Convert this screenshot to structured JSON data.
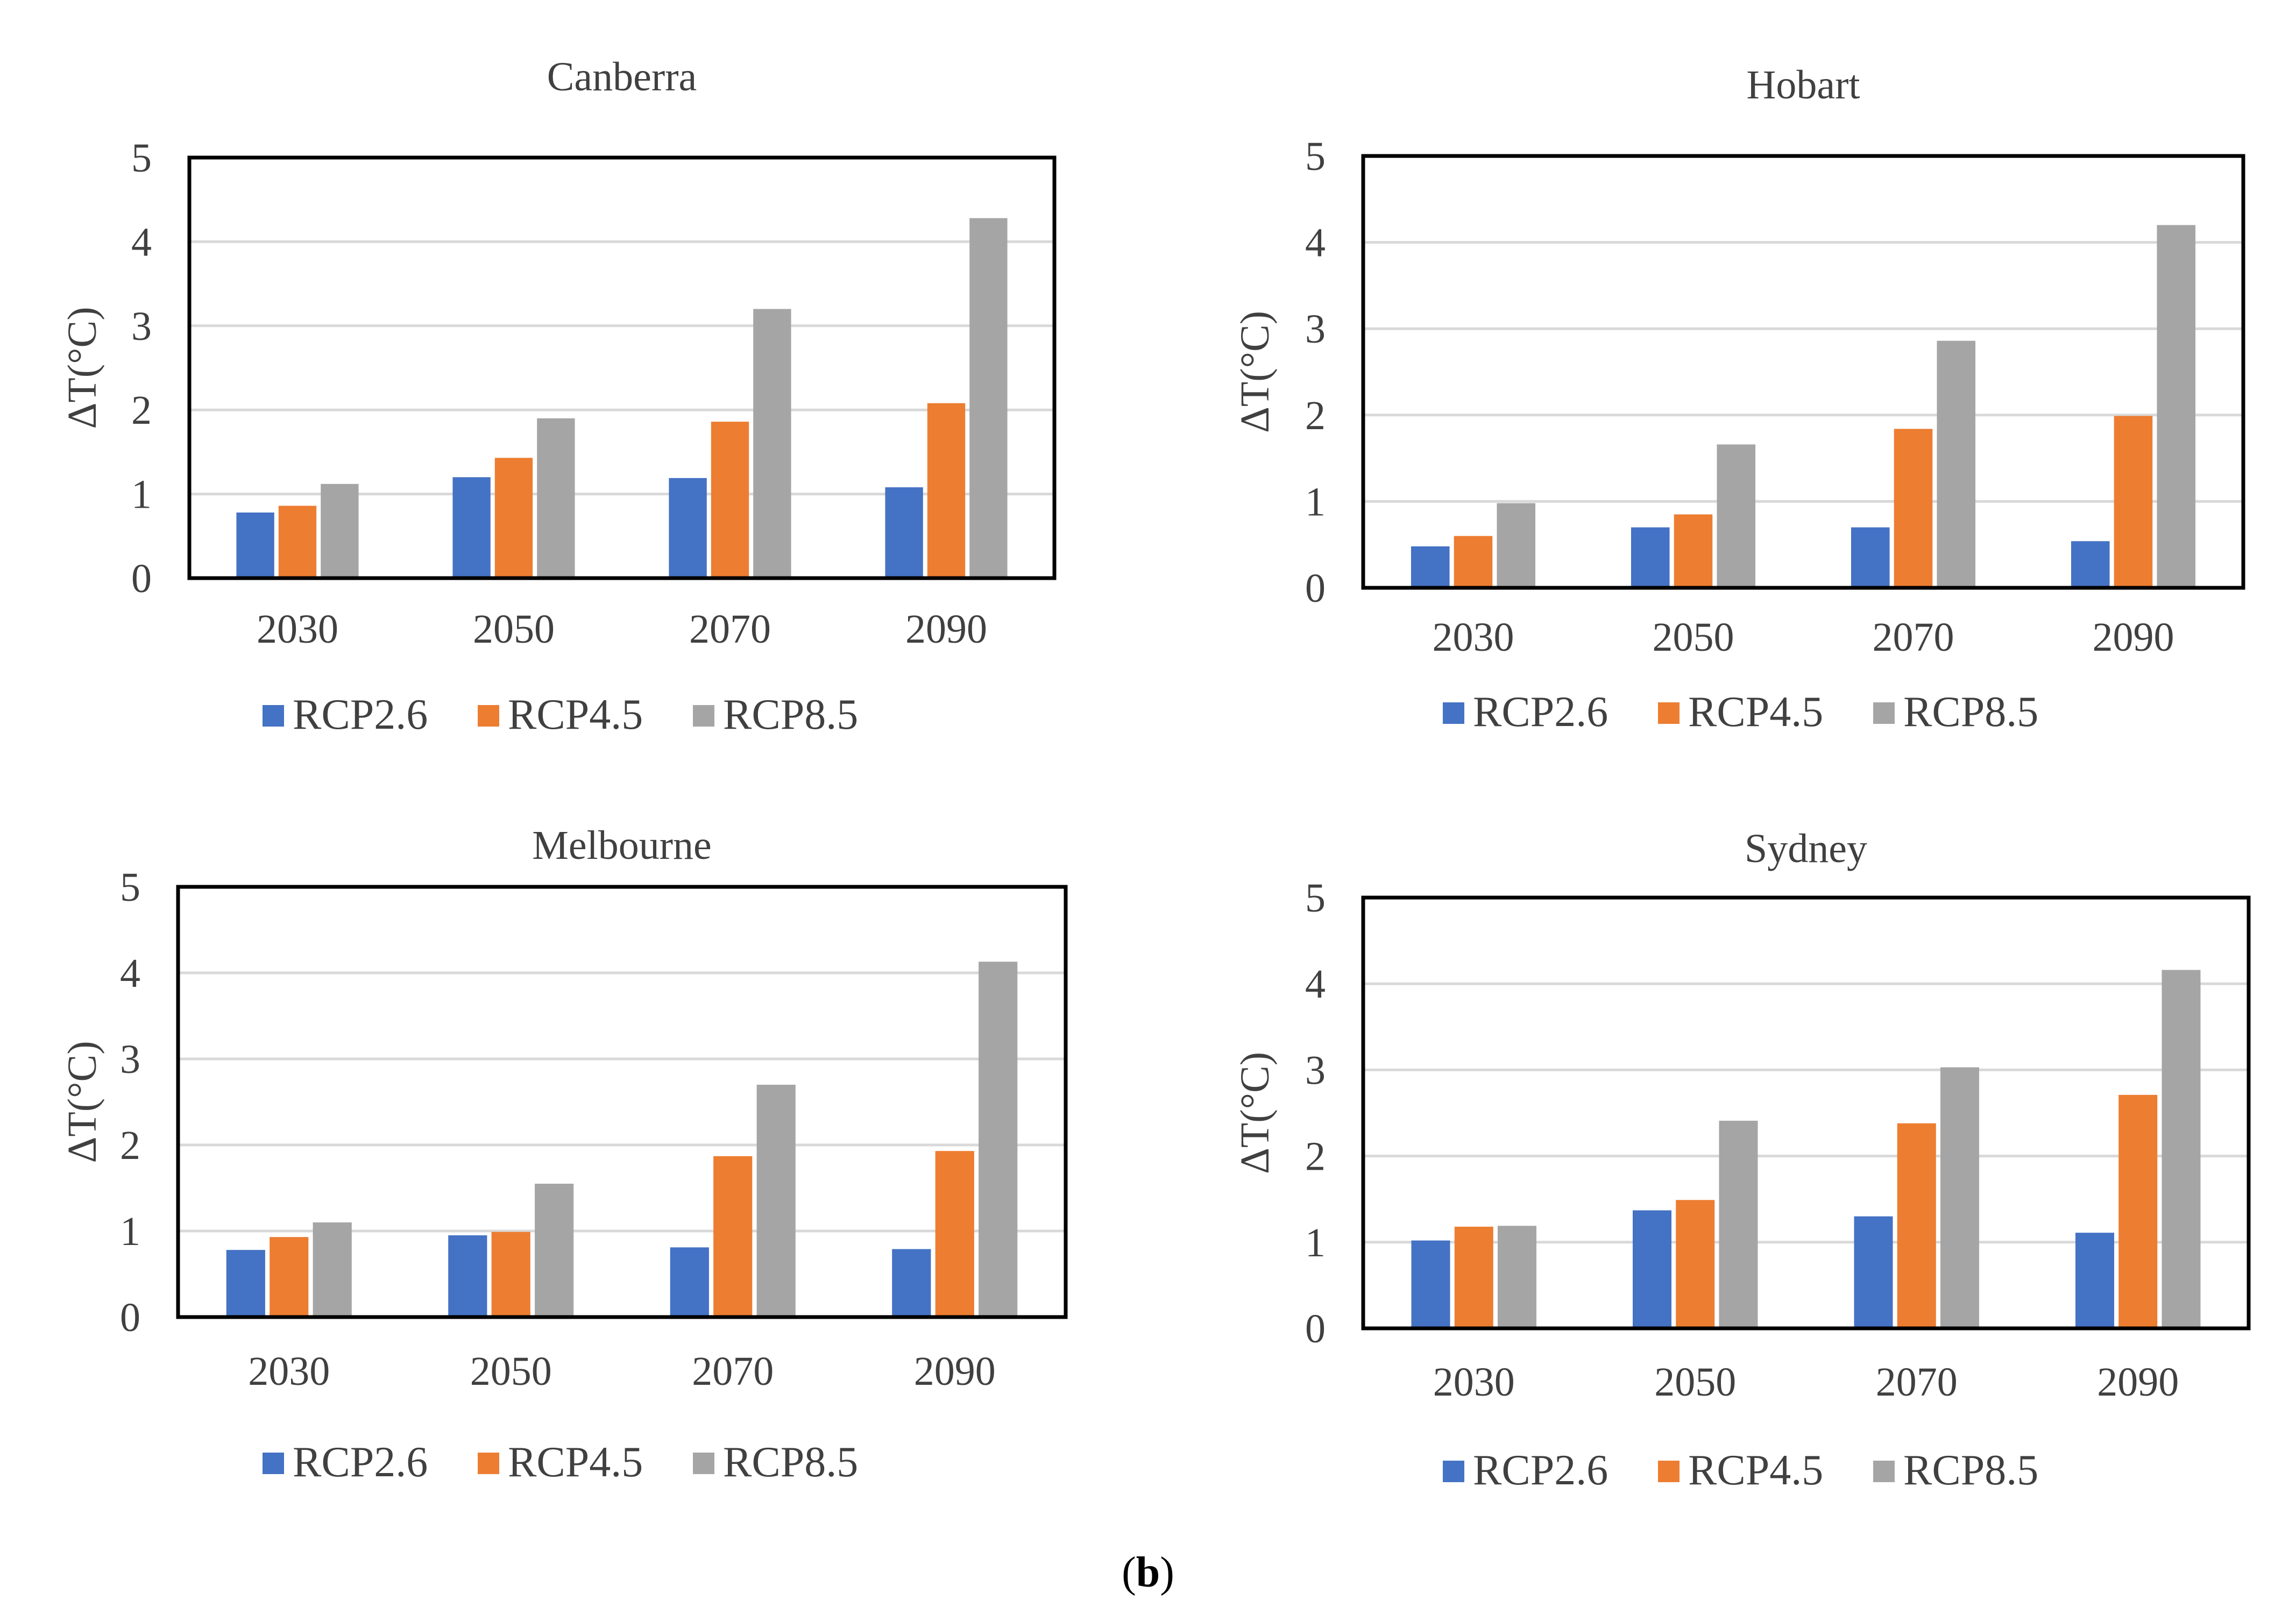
{
  "colors": {
    "RCP2.6": "#4472c4",
    "RCP4.5": "#ed7d31",
    "RCP8.5": "#a5a5a5",
    "grid": "#d9d9d9",
    "frame": "#000000",
    "text": "#404040"
  },
  "caption": {
    "open": "(",
    "bold": "b",
    "close": ")"
  },
  "chart_data": [
    {
      "type": "bar",
      "title": "Canberra",
      "ylabel": "ΔT(°C)",
      "xlabel": "",
      "ylim": [
        0,
        5
      ],
      "yticks": [
        "0",
        "1",
        "2",
        "3",
        "4",
        "5"
      ],
      "categories": [
        "2030",
        "2050",
        "2070",
        "2090"
      ],
      "series": [
        {
          "name": "RCP2.6",
          "values": [
            0.78,
            1.2,
            1.19,
            1.08
          ]
        },
        {
          "name": "RCP4.5",
          "values": [
            0.86,
            1.43,
            1.86,
            2.08
          ]
        },
        {
          "name": "RCP8.5",
          "values": [
            1.12,
            1.9,
            3.2,
            4.28
          ]
        }
      ],
      "legend": "bottom"
    },
    {
      "type": "bar",
      "title": "Hobart",
      "ylabel": "ΔT(°C)",
      "xlabel": "",
      "ylim": [
        0,
        5
      ],
      "yticks": [
        "0",
        "1",
        "2",
        "3",
        "4",
        "5"
      ],
      "categories": [
        "2030",
        "2050",
        "2070",
        "2090"
      ],
      "series": [
        {
          "name": "RCP2.6",
          "values": [
            0.48,
            0.7,
            0.7,
            0.54
          ]
        },
        {
          "name": "RCP4.5",
          "values": [
            0.6,
            0.85,
            1.84,
            1.99
          ]
        },
        {
          "name": "RCP8.5",
          "values": [
            0.98,
            1.66,
            2.86,
            4.2
          ]
        }
      ],
      "legend": "bottom"
    },
    {
      "type": "bar",
      "title": "Melbourne",
      "ylabel": "ΔT(°C)",
      "xlabel": "",
      "ylim": [
        0,
        5
      ],
      "yticks": [
        "0",
        "1",
        "2",
        "3",
        "4",
        "5"
      ],
      "categories": [
        "2030",
        "2050",
        "2070",
        "2090"
      ],
      "series": [
        {
          "name": "RCP2.6",
          "values": [
            0.78,
            0.95,
            0.81,
            0.79
          ]
        },
        {
          "name": "RCP4.5",
          "values": [
            0.93,
            0.99,
            1.87,
            1.93
          ]
        },
        {
          "name": "RCP8.5",
          "values": [
            1.1,
            1.55,
            2.7,
            4.13
          ]
        }
      ],
      "legend": "bottom"
    },
    {
      "type": "bar",
      "title": "Sydney",
      "ylabel": "ΔT(°C)",
      "xlabel": "",
      "ylim": [
        0,
        5
      ],
      "yticks": [
        "0",
        "1",
        "2",
        "3",
        "4",
        "5"
      ],
      "categories": [
        "2030",
        "2050",
        "2070",
        "2090"
      ],
      "series": [
        {
          "name": "RCP2.6",
          "values": [
            1.02,
            1.37,
            1.3,
            1.11
          ]
        },
        {
          "name": "RCP4.5",
          "values": [
            1.18,
            1.49,
            2.38,
            2.71
          ]
        },
        {
          "name": "RCP8.5",
          "values": [
            1.19,
            2.41,
            3.03,
            4.16
          ]
        }
      ],
      "legend": "bottom"
    }
  ]
}
